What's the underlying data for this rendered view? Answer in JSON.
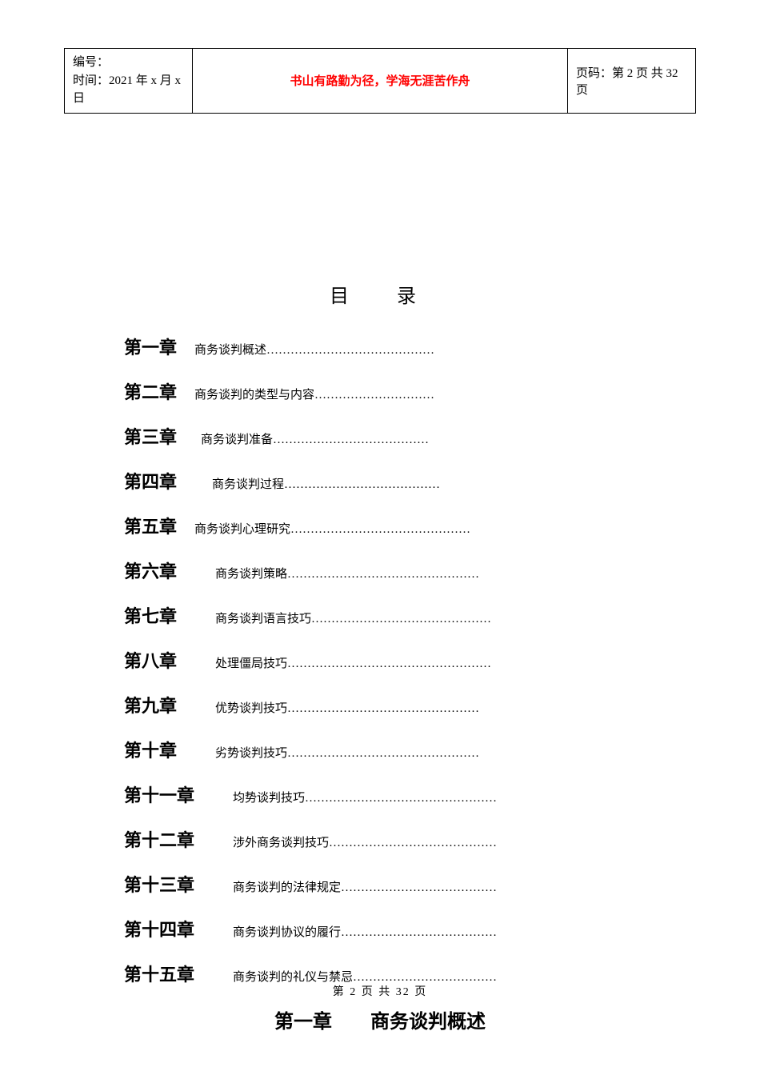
{
  "header": {
    "serial_label": "编号：",
    "time_label": "时间：2021 年 x 月 x 日",
    "motto": "书山有路勤为径，学海无涯苦作舟",
    "page_label": "页码：第 2 页 共 32 页"
  },
  "toc": {
    "title": "目　录",
    "items": [
      {
        "chapter": "第一章",
        "desc": "商务谈判概述……………………………………",
        "indent": 0
      },
      {
        "chapter": "第二章",
        "desc": "商务谈判的类型与内容…………………………",
        "indent": 0
      },
      {
        "chapter": "第三章",
        "desc": "商务谈判准备…………………………………",
        "indent": 1
      },
      {
        "chapter": "第四章",
        "desc": "商务谈判过程…………………………………",
        "indent": 2
      },
      {
        "chapter": "第五章",
        "desc": "商务谈判心理研究………………………………………",
        "indent": 0
      },
      {
        "chapter": "第六章",
        "desc": "商务谈判策略…………………………………………",
        "indent": 3
      },
      {
        "chapter": "第七章",
        "desc": "商务谈判语言技巧………………………………………",
        "indent": 3
      },
      {
        "chapter": "第八章",
        "desc": "处理僵局技巧……………………………………………",
        "indent": 3
      },
      {
        "chapter": "第九章",
        "desc": "优势谈判技巧…………………………………………",
        "indent": 3
      },
      {
        "chapter": "第十章",
        "desc": "劣势谈判技巧…………………………………………",
        "indent": 3
      },
      {
        "chapter": "第十一章",
        "desc": "均势谈判技巧…………………………………………",
        "indent": 3
      },
      {
        "chapter": "第十二章",
        "desc": "涉外商务谈判技巧……………………………………",
        "indent": 3
      },
      {
        "chapter": "第十三章",
        "desc": "商务谈判的法律规定…………………………………",
        "indent": 3
      },
      {
        "chapter": "第十四章",
        "desc": "商务谈判协议的履行…………………………………",
        "indent": 3
      },
      {
        "chapter": "第十五章",
        "desc": "商务谈判的礼仪与禁忌………………………………",
        "indent": 3
      }
    ]
  },
  "chapter_heading": "第一章　　商务谈判概述",
  "footer": "第 2 页 共 32 页"
}
